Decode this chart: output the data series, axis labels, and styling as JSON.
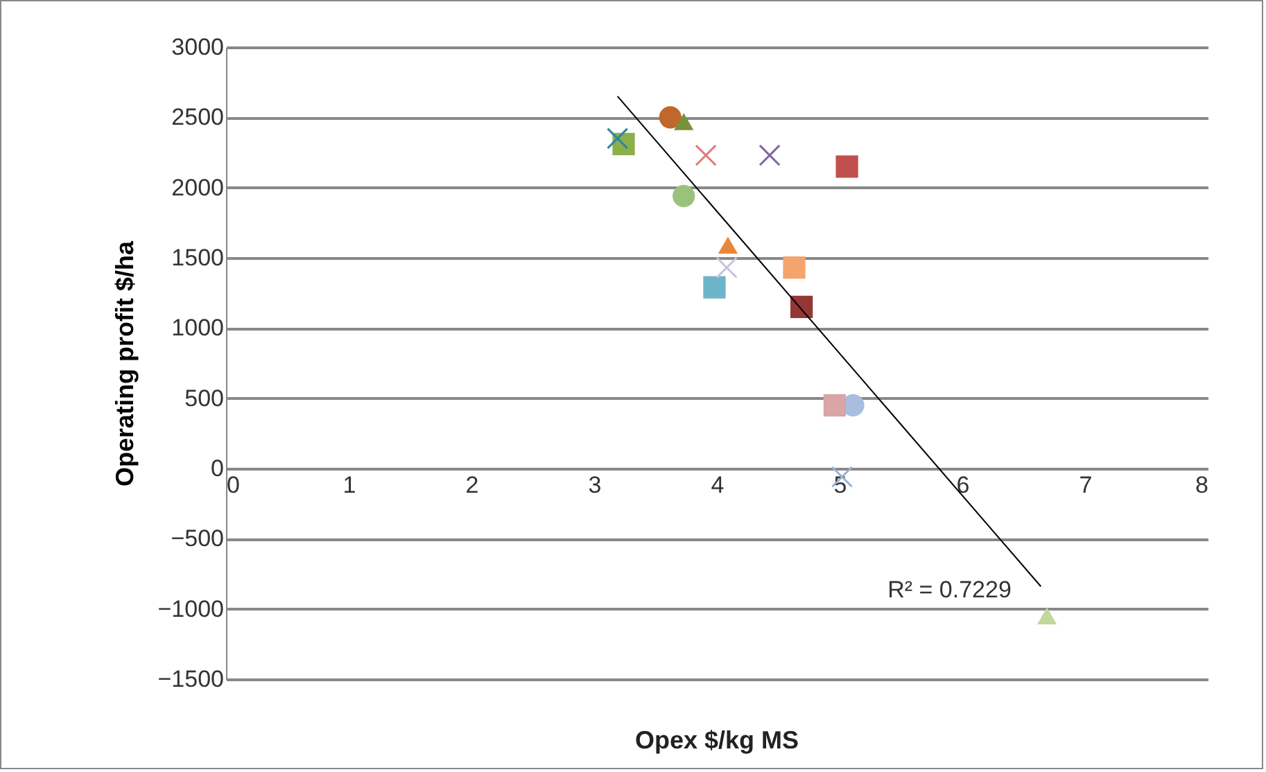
{
  "chart_data": {
    "type": "scatter",
    "xlabel": "Opex $/kg MS",
    "ylabel": "Operating profit $/ha",
    "xlim": [
      0,
      8
    ],
    "xticks": [
      0,
      1,
      2,
      3,
      4,
      5,
      6,
      7,
      8
    ],
    "ylim": [
      -1500,
      3000
    ],
    "yticks": [
      -1500,
      -1000,
      -500,
      0,
      500,
      1000,
      1500,
      2000,
      2500,
      3000
    ],
    "grid": "y",
    "series": [
      {
        "marker": "circle",
        "x": [
          3.62,
          3.73,
          5.11
        ],
        "values": [
          2500,
          1940,
          450
        ],
        "colors": [
          "#c0672c",
          "#9bc27a",
          "#a9bedf"
        ]
      },
      {
        "marker": "triangle",
        "x": [
          3.73,
          4.09,
          6.69
        ],
        "values": [
          2470,
          1590,
          -1050
        ],
        "colors": [
          "#76923c",
          "#e8873a",
          "#c3d69b"
        ]
      },
      {
        "marker": "square",
        "x": [
          4.69,
          4.96,
          5.06,
          3.24,
          4.63,
          3.98
        ],
        "values": [
          1150,
          450,
          2150,
          2310,
          1430,
          1290
        ],
        "colors": [
          "#953735",
          "#d9a5a6",
          "#c0504d",
          "#8bb04a",
          "#f5a46d",
          "#6cb5c9"
        ]
      },
      {
        "marker": "cross",
        "x": [
          4.43,
          4.08,
          5.02
        ],
        "values": [
          2230,
          1430,
          -60
        ],
        "colors": [
          "#8064a2",
          "#c8c3dd",
          "#95b3d7"
        ]
      },
      {
        "marker": "cross",
        "x": [
          3.19,
          3.91
        ],
        "values": [
          2350,
          2230
        ],
        "colors": [
          "#31859c",
          "#e27a7a"
        ]
      },
      {
        "type": "line",
        "color": "#000000",
        "x": [
          3.19,
          6.64
        ],
        "values": [
          2650,
          -840
        ]
      }
    ],
    "annotations": [
      "R² = 0.7229"
    ]
  }
}
